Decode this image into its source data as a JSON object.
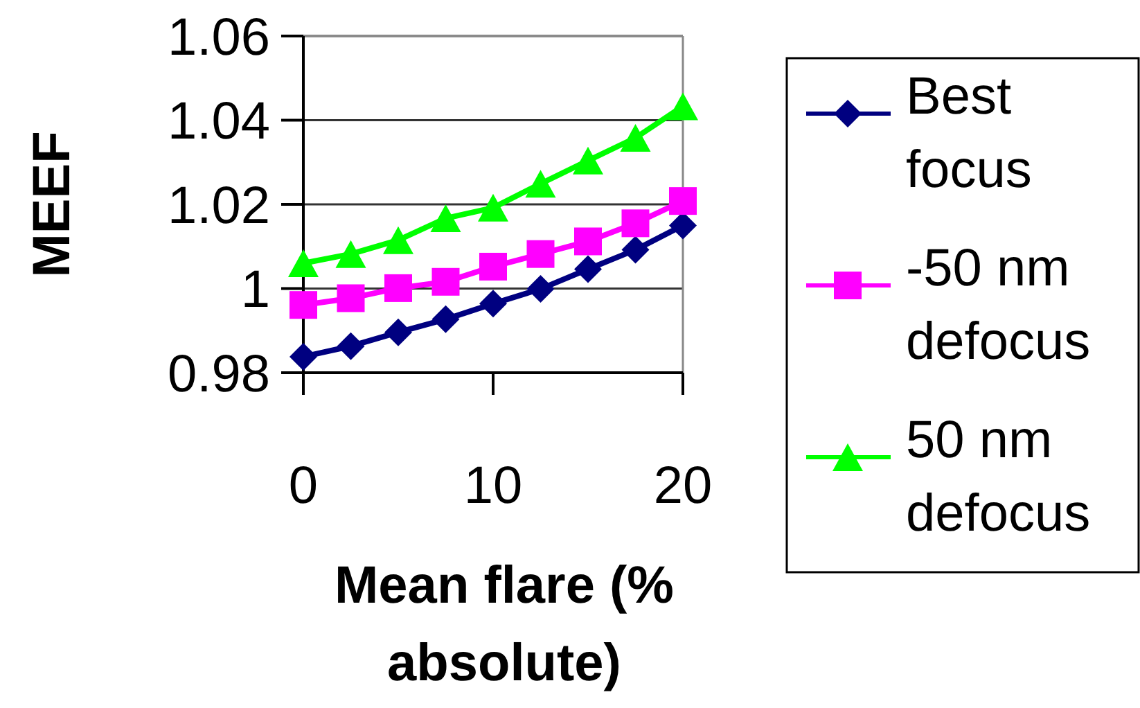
{
  "chart_data": {
    "type": "line",
    "xlabel": "Mean flare (% absolute)",
    "ylabel": "MEEF",
    "x": [
      0,
      2.5,
      5,
      7.5,
      10,
      12.5,
      15,
      17.5,
      20
    ],
    "series": [
      {
        "name": "Best focus",
        "color": "#000080",
        "marker": "diamond",
        "values": [
          0.9838,
          0.9863,
          0.9896,
          0.9927,
          0.9964,
          0.9999,
          1.0046,
          1.0092,
          1.015
        ]
      },
      {
        "name": "-50 nm defocus",
        "color": "#ff00ff",
        "marker": "square",
        "values": [
          0.9961,
          0.9977,
          1.0001,
          1.0016,
          1.0052,
          1.0082,
          1.0112,
          1.0155,
          1.0208
        ]
      },
      {
        "name": "50 nm defocus",
        "color": "#00ff00",
        "marker": "triangle",
        "values": [
          1.006,
          1.0082,
          1.0115,
          1.0167,
          1.0192,
          1.0249,
          1.0304,
          1.0358,
          1.0433
        ]
      }
    ],
    "xlim": [
      0,
      20
    ],
    "xticks": [
      0,
      10,
      20
    ],
    "ylim": [
      0.98,
      1.06
    ],
    "yticks": [
      {
        "value": 0.98,
        "label": "0.98"
      },
      {
        "value": 1,
        "label": "1"
      },
      {
        "value": 1.02,
        "label": "1.02"
      },
      {
        "value": 1.04,
        "label": "1.04"
      },
      {
        "value": 1.06,
        "label": "1.06"
      }
    ],
    "grid": "y",
    "legend": "right",
    "line_style": "solid"
  }
}
